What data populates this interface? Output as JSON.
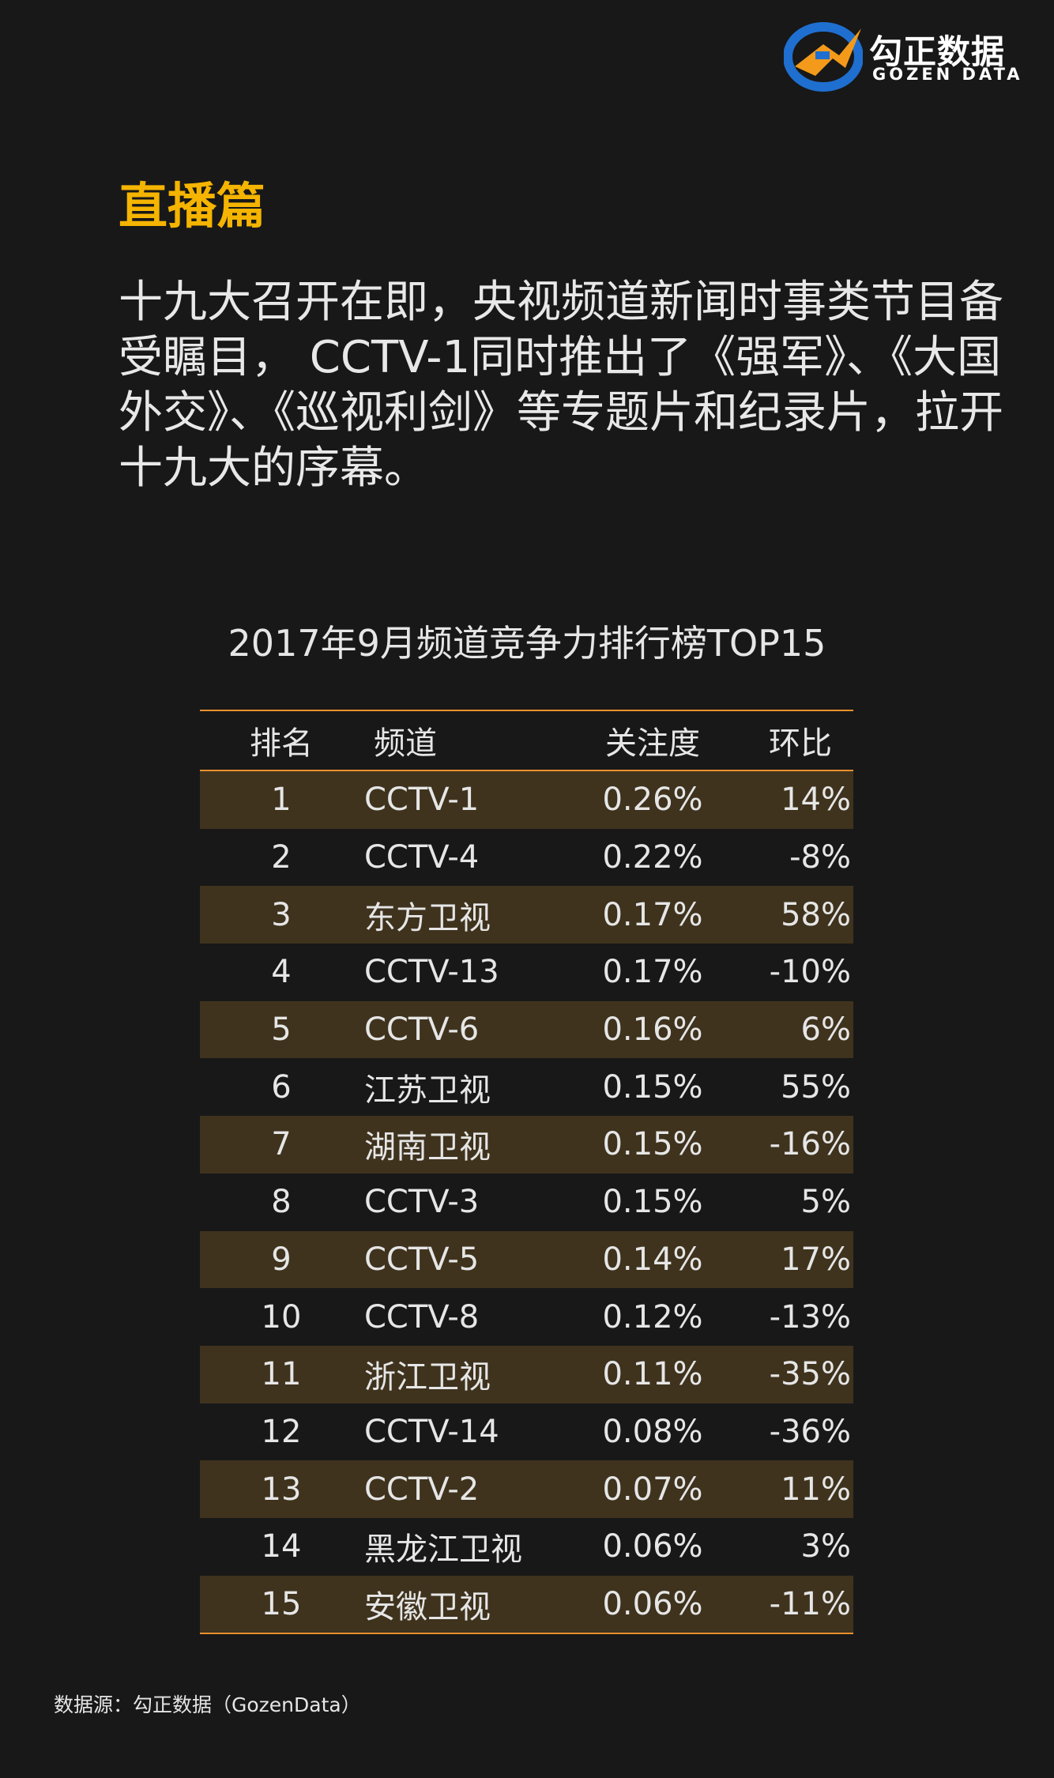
{
  "brand": {
    "name_cn": "勾正数据",
    "name_en": "GOZEN DATA",
    "colors": {
      "blue": "#1f6fd0",
      "orange": "#f39a1b"
    }
  },
  "section_title": "直播篇",
  "intro": "十九大召开在即，央视频道新闻时事类节目备受瞩目， CCTV-1同时推出了《强军》、《大国外交》、《巡视利剑》等专题片和纪录片，拉开十九大的序幕。",
  "table": {
    "title": "2017年9月频道竞争力排行榜TOP15",
    "headers": {
      "rank": "排名",
      "channel": "频道",
      "attention": "关注度",
      "mom": "环比"
    },
    "rows": [
      {
        "rank": "1",
        "channel": "CCTV-1",
        "attention": "0.26%",
        "mom": "14%"
      },
      {
        "rank": "2",
        "channel": "CCTV-4",
        "attention": "0.22%",
        "mom": "-8%"
      },
      {
        "rank": "3",
        "channel": "东方卫视",
        "attention": "0.17%",
        "mom": "58%"
      },
      {
        "rank": "4",
        "channel": "CCTV-13",
        "attention": "0.17%",
        "mom": "-10%"
      },
      {
        "rank": "5",
        "channel": "CCTV-6",
        "attention": "0.16%",
        "mom": "6%"
      },
      {
        "rank": "6",
        "channel": "江苏卫视",
        "attention": "0.15%",
        "mom": "55%"
      },
      {
        "rank": "7",
        "channel": "湖南卫视",
        "attention": "0.15%",
        "mom": "-16%"
      },
      {
        "rank": "8",
        "channel": "CCTV-3",
        "attention": "0.15%",
        "mom": "5%"
      },
      {
        "rank": "9",
        "channel": "CCTV-5",
        "attention": "0.14%",
        "mom": "17%"
      },
      {
        "rank": "10",
        "channel": "CCTV-8",
        "attention": "0.12%",
        "mom": "-13%"
      },
      {
        "rank": "11",
        "channel": "浙江卫视",
        "attention": "0.11%",
        "mom": "-35%"
      },
      {
        "rank": "12",
        "channel": "CCTV-14",
        "attention": "0.08%",
        "mom": "-36%"
      },
      {
        "rank": "13",
        "channel": "CCTV-2",
        "attention": "0.07%",
        "mom": "11%"
      },
      {
        "rank": "14",
        "channel": "黑龙江卫视",
        "attention": "0.06%",
        "mom": "3%"
      },
      {
        "rank": "15",
        "channel": "安徽卫视",
        "attention": "0.06%",
        "mom": "-11%"
      }
    ]
  },
  "footer": "数据源：勾正数据（GozenData）"
}
